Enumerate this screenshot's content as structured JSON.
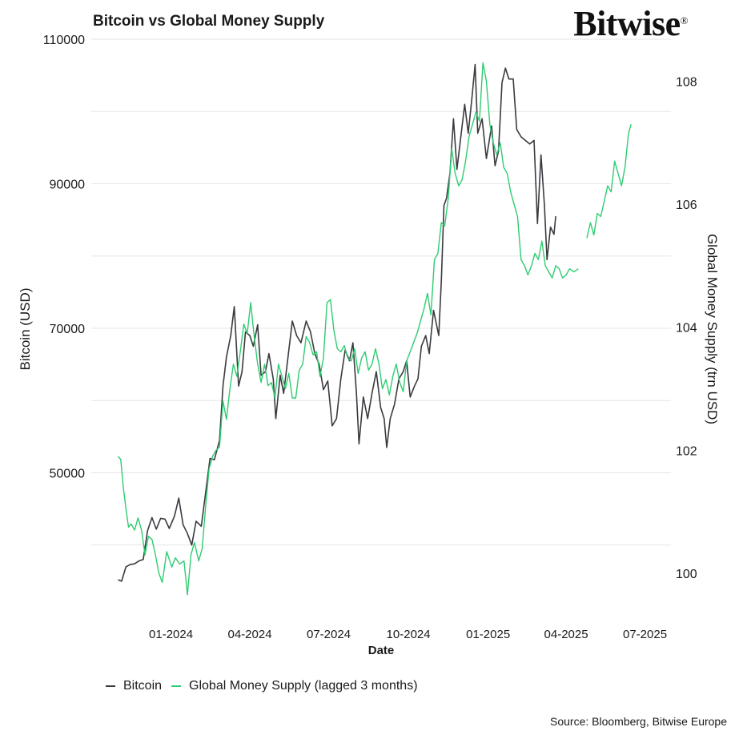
{
  "title": "Bitcoin vs Global Money Supply",
  "brand": "Bitwise",
  "brand_mark": "®",
  "source": "Source: Bloomberg, Bitwise Europe",
  "colors": {
    "bitcoin": "#3a3a40",
    "money_supply": "#2ecc71",
    "grid": "#e6e6e6"
  },
  "chart_data": {
    "type": "line",
    "xlabel": "Date",
    "ylabel_left": "Bitcoin (USD)",
    "ylabel_right": "Global Money Supply (trn USD)",
    "x_ticks": [
      "01-2024",
      "04-2024",
      "07-2024",
      "10-2024",
      "01-2025",
      "04-2025",
      "07-2025"
    ],
    "y_ticks_left": [
      50000,
      70000,
      90000,
      110000
    ],
    "y_ticks_right": [
      100,
      102,
      104,
      106,
      108
    ],
    "ylim_left": [
      31000,
      111000
    ],
    "ylim_right": [
      99.4,
      108.8
    ],
    "grid": true,
    "legend_position": "bottom",
    "series": [
      {
        "name": "Bitcoin",
        "axis": "left",
        "points": [
          [
            "2023-11-01",
            35200
          ],
          [
            "2023-11-05",
            35000
          ],
          [
            "2023-11-10",
            37000
          ],
          [
            "2023-11-15",
            37300
          ],
          [
            "2023-11-20",
            37400
          ],
          [
            "2023-11-25",
            37800
          ],
          [
            "2023-11-30",
            38000
          ],
          [
            "2023-12-05",
            42000
          ],
          [
            "2023-12-10",
            43800
          ],
          [
            "2023-12-15",
            42200
          ],
          [
            "2023-12-20",
            43700
          ],
          [
            "2023-12-25",
            43600
          ],
          [
            "2023-12-30",
            42300
          ],
          [
            "2024-01-05",
            44000
          ],
          [
            "2024-01-10",
            46500
          ],
          [
            "2024-01-15",
            42800
          ],
          [
            "2024-01-20",
            41600
          ],
          [
            "2024-01-25",
            40000
          ],
          [
            "2024-01-30",
            43300
          ],
          [
            "2024-02-05",
            42600
          ],
          [
            "2024-02-10",
            47300
          ],
          [
            "2024-02-15",
            52000
          ],
          [
            "2024-02-20",
            51800
          ],
          [
            "2024-02-26",
            54500
          ],
          [
            "2024-03-01",
            62000
          ],
          [
            "2024-03-05",
            66000
          ],
          [
            "2024-03-10",
            69000
          ],
          [
            "2024-03-14",
            73000
          ],
          [
            "2024-03-19",
            62000
          ],
          [
            "2024-03-23",
            64000
          ],
          [
            "2024-03-27",
            69500
          ],
          [
            "2024-04-01",
            69000
          ],
          [
            "2024-04-05",
            67500
          ],
          [
            "2024-04-10",
            70500
          ],
          [
            "2024-04-14",
            63500
          ],
          [
            "2024-04-19",
            64000
          ],
          [
            "2024-04-23",
            66500
          ],
          [
            "2024-04-28",
            63000
          ],
          [
            "2024-05-01",
            57500
          ],
          [
            "2024-05-06",
            63500
          ],
          [
            "2024-05-10",
            61000
          ],
          [
            "2024-05-15",
            66000
          ],
          [
            "2024-05-20",
            71000
          ],
          [
            "2024-05-25",
            69000
          ],
          [
            "2024-05-30",
            68000
          ],
          [
            "2024-06-05",
            71000
          ],
          [
            "2024-06-10",
            69500
          ],
          [
            "2024-06-15",
            66500
          ],
          [
            "2024-06-20",
            65000
          ],
          [
            "2024-06-25",
            61500
          ],
          [
            "2024-06-30",
            62700
          ],
          [
            "2024-07-05",
            56500
          ],
          [
            "2024-07-10",
            57500
          ],
          [
            "2024-07-15",
            63000
          ],
          [
            "2024-07-20",
            67000
          ],
          [
            "2024-07-25",
            65500
          ],
          [
            "2024-07-29",
            68000
          ],
          [
            "2024-08-02",
            61000
          ],
          [
            "2024-08-05",
            54000
          ],
          [
            "2024-08-10",
            60500
          ],
          [
            "2024-08-15",
            57500
          ],
          [
            "2024-08-20",
            61000
          ],
          [
            "2024-08-25",
            64000
          ],
          [
            "2024-08-30",
            59000
          ],
          [
            "2024-09-03",
            57500
          ],
          [
            "2024-09-06",
            53500
          ],
          [
            "2024-09-10",
            57500
          ],
          [
            "2024-09-15",
            59500
          ],
          [
            "2024-09-20",
            63000
          ],
          [
            "2024-09-25",
            64000
          ],
          [
            "2024-09-29",
            65500
          ],
          [
            "2024-10-03",
            60500
          ],
          [
            "2024-10-08",
            62000
          ],
          [
            "2024-10-12",
            63000
          ],
          [
            "2024-10-16",
            67500
          ],
          [
            "2024-10-21",
            69000
          ],
          [
            "2024-10-25",
            66500
          ],
          [
            "2024-10-30",
            72500
          ],
          [
            "2024-11-05",
            69000
          ],
          [
            "2024-11-08",
            76500
          ],
          [
            "2024-11-11",
            87000
          ],
          [
            "2024-11-14",
            88000
          ],
          [
            "2024-11-18",
            91500
          ],
          [
            "2024-11-22",
            99000
          ],
          [
            "2024-11-26",
            92000
          ],
          [
            "2024-12-01",
            97000
          ],
          [
            "2024-12-05",
            101000
          ],
          [
            "2024-12-09",
            97000
          ],
          [
            "2024-12-13",
            101500
          ],
          [
            "2024-12-17",
            106500
          ],
          [
            "2024-12-20",
            97000
          ],
          [
            "2024-12-25",
            99000
          ],
          [
            "2024-12-30",
            93500
          ],
          [
            "2025-01-05",
            98000
          ],
          [
            "2025-01-09",
            92500
          ],
          [
            "2025-01-13",
            94500
          ],
          [
            "2025-01-17",
            104000
          ],
          [
            "2025-01-21",
            106000
          ],
          [
            "2025-01-25",
            104500
          ],
          [
            "2025-01-30",
            104500
          ],
          [
            "2025-02-03",
            97500
          ],
          [
            "2025-02-08",
            96500
          ],
          [
            "2025-02-13",
            96000
          ],
          [
            "2025-02-18",
            95500
          ],
          [
            "2025-02-23",
            96000
          ],
          [
            "2025-02-27",
            84500
          ],
          [
            "2025-03-03",
            94000
          ],
          [
            "2025-03-07",
            87000
          ],
          [
            "2025-03-10",
            79500
          ],
          [
            "2025-03-14",
            84000
          ],
          [
            "2025-03-18",
            83000
          ],
          [
            "2025-03-20",
            85500
          ]
        ]
      },
      {
        "name": "Global Money Supply (lagged 3 months)",
        "axis": "right",
        "points": [
          [
            "2023-11-01",
            101.9
          ],
          [
            "2023-11-04",
            101.85
          ],
          [
            "2023-11-07",
            101.4
          ],
          [
            "2023-11-10",
            101.05
          ],
          [
            "2023-11-13",
            100.75
          ],
          [
            "2023-11-16",
            100.8
          ],
          [
            "2023-11-20",
            100.7
          ],
          [
            "2023-11-24",
            100.9
          ],
          [
            "2023-11-28",
            100.7
          ],
          [
            "2023-12-02",
            100.3
          ],
          [
            "2023-12-06",
            100.6
          ],
          [
            "2023-12-10",
            100.55
          ],
          [
            "2023-12-14",
            100.3
          ],
          [
            "2023-12-18",
            100.0
          ],
          [
            "2023-12-22",
            99.85
          ],
          [
            "2023-12-27",
            100.35
          ],
          [
            "2024-01-02",
            100.1
          ],
          [
            "2024-01-06",
            100.25
          ],
          [
            "2024-01-11",
            100.15
          ],
          [
            "2024-01-16",
            100.2
          ],
          [
            "2024-01-20",
            99.65
          ],
          [
            "2024-01-24",
            100.3
          ],
          [
            "2024-01-28",
            100.5
          ],
          [
            "2024-02-02",
            100.2
          ],
          [
            "2024-02-06",
            100.4
          ],
          [
            "2024-02-10",
            101.1
          ],
          [
            "2024-02-14",
            101.7
          ],
          [
            "2024-02-18",
            101.9
          ],
          [
            "2024-02-22",
            102.0
          ],
          [
            "2024-02-26",
            102.05
          ],
          [
            "2024-03-01",
            102.8
          ],
          [
            "2024-03-05",
            102.5
          ],
          [
            "2024-03-09",
            103.0
          ],
          [
            "2024-03-13",
            103.4
          ],
          [
            "2024-03-17",
            103.2
          ],
          [
            "2024-03-21",
            103.6
          ],
          [
            "2024-03-25",
            104.05
          ],
          [
            "2024-03-29",
            103.9
          ],
          [
            "2024-04-02",
            104.4
          ],
          [
            "2024-04-06",
            103.85
          ],
          [
            "2024-04-10",
            103.4
          ],
          [
            "2024-04-14",
            103.1
          ],
          [
            "2024-04-18",
            103.4
          ],
          [
            "2024-04-22",
            103.05
          ],
          [
            "2024-04-26",
            103.1
          ],
          [
            "2024-04-30",
            102.85
          ],
          [
            "2024-05-04",
            103.4
          ],
          [
            "2024-05-08",
            103.2
          ],
          [
            "2024-05-12",
            103.0
          ],
          [
            "2024-05-16",
            103.25
          ],
          [
            "2024-05-20",
            102.85
          ],
          [
            "2024-05-24",
            102.85
          ],
          [
            "2024-05-28",
            103.3
          ],
          [
            "2024-06-01",
            103.4
          ],
          [
            "2024-06-05",
            103.85
          ],
          [
            "2024-06-09",
            103.75
          ],
          [
            "2024-06-13",
            103.55
          ],
          [
            "2024-06-17",
            103.6
          ],
          [
            "2024-06-21",
            103.2
          ],
          [
            "2024-06-25",
            103.5
          ],
          [
            "2024-06-29",
            104.4
          ],
          [
            "2024-07-03",
            104.45
          ],
          [
            "2024-07-07",
            103.95
          ],
          [
            "2024-07-11",
            103.65
          ],
          [
            "2024-07-15",
            103.6
          ],
          [
            "2024-07-19",
            103.7
          ],
          [
            "2024-07-23",
            103.5
          ],
          [
            "2024-07-27",
            103.45
          ],
          [
            "2024-07-31",
            103.65
          ],
          [
            "2024-08-04",
            103.25
          ],
          [
            "2024-08-08",
            103.5
          ],
          [
            "2024-08-12",
            103.6
          ],
          [
            "2024-08-16",
            103.3
          ],
          [
            "2024-08-20",
            103.4
          ],
          [
            "2024-08-24",
            103.65
          ],
          [
            "2024-08-28",
            103.4
          ],
          [
            "2024-09-01",
            103.0
          ],
          [
            "2024-09-05",
            103.15
          ],
          [
            "2024-09-09",
            102.9
          ],
          [
            "2024-09-13",
            103.2
          ],
          [
            "2024-09-17",
            103.4
          ],
          [
            "2024-09-21",
            103.1
          ],
          [
            "2024-09-25",
            102.95
          ],
          [
            "2024-09-29",
            103.45
          ],
          [
            "2024-10-03",
            103.6
          ],
          [
            "2024-10-07",
            103.75
          ],
          [
            "2024-10-11",
            103.9
          ],
          [
            "2024-10-15",
            104.1
          ],
          [
            "2024-10-19",
            104.3
          ],
          [
            "2024-10-23",
            104.55
          ],
          [
            "2024-10-27",
            104.2
          ],
          [
            "2024-10-31",
            105.1
          ],
          [
            "2024-11-04",
            105.2
          ],
          [
            "2024-11-08",
            105.7
          ],
          [
            "2024-11-12",
            105.65
          ],
          [
            "2024-11-16",
            106.1
          ],
          [
            "2024-11-20",
            106.9
          ],
          [
            "2024-11-24",
            106.5
          ],
          [
            "2024-11-28",
            106.3
          ],
          [
            "2024-12-02",
            106.4
          ],
          [
            "2024-12-06",
            106.7
          ],
          [
            "2024-12-10",
            107.1
          ],
          [
            "2024-12-14",
            107.3
          ],
          [
            "2024-12-18",
            107.5
          ],
          [
            "2024-12-22",
            107.35
          ],
          [
            "2024-12-26",
            108.3
          ],
          [
            "2024-12-30",
            108.0
          ],
          [
            "2025-01-03",
            107.3
          ],
          [
            "2025-01-07",
            107.0
          ],
          [
            "2025-01-11",
            106.8
          ],
          [
            "2025-01-15",
            107.0
          ],
          [
            "2025-01-19",
            106.6
          ],
          [
            "2025-01-23",
            106.5
          ],
          [
            "2025-01-27",
            106.2
          ],
          [
            "2025-01-31",
            106.0
          ],
          [
            "2025-02-04",
            105.8
          ],
          [
            "2025-02-08",
            105.1
          ],
          [
            "2025-02-12",
            105.0
          ],
          [
            "2025-02-16",
            104.85
          ],
          [
            "2025-02-20",
            105.0
          ],
          [
            "2025-02-24",
            105.2
          ],
          [
            "2025-02-28",
            105.1
          ],
          [
            "2025-03-04",
            105.4
          ],
          [
            "2025-03-08",
            105.0
          ],
          [
            "2025-03-12",
            104.9
          ],
          [
            "2025-03-16",
            104.8
          ],
          [
            "2025-03-20",
            105.0
          ],
          [
            "2025-03-24",
            104.95
          ],
          [
            "2025-03-28",
            104.8
          ],
          [
            "2025-04-01",
            104.85
          ],
          [
            "2025-04-05",
            104.95
          ],
          [
            "2025-04-10",
            104.9
          ],
          [
            "2025-04-15",
            104.95
          ],
          [
            "2025-04-20",
            null
          ],
          [
            "2025-04-25",
            105.45
          ],
          [
            "2025-04-29",
            105.7
          ],
          [
            "2025-05-03",
            105.5
          ],
          [
            "2025-05-07",
            105.85
          ],
          [
            "2025-05-11",
            105.8
          ],
          [
            "2025-05-15",
            106.05
          ],
          [
            "2025-05-19",
            106.3
          ],
          [
            "2025-05-23",
            106.2
          ],
          [
            "2025-05-27",
            106.7
          ],
          [
            "2025-05-31",
            106.5
          ],
          [
            "2025-06-04",
            106.3
          ],
          [
            "2025-06-08",
            106.6
          ],
          [
            "2025-06-12",
            107.15
          ],
          [
            "2025-06-15",
            107.3
          ]
        ]
      }
    ]
  }
}
